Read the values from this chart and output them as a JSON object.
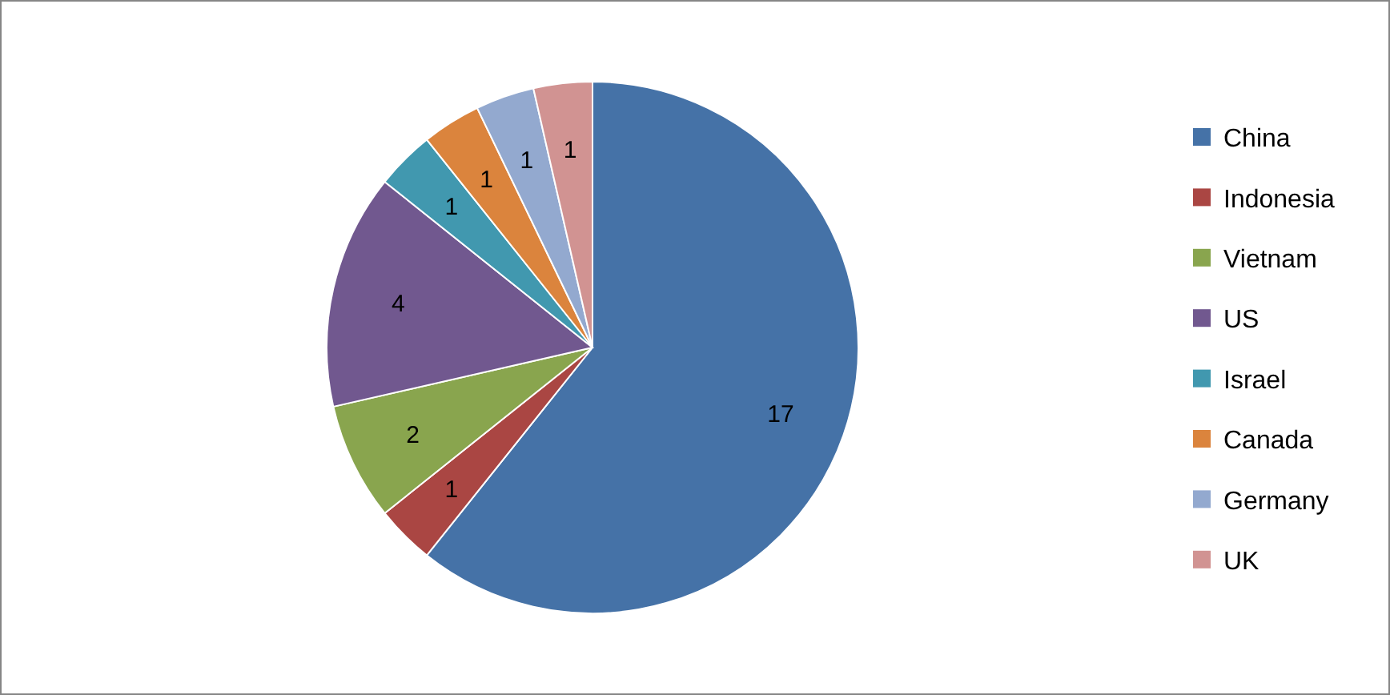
{
  "chart_data": {
    "type": "pie",
    "categories": [
      "China",
      "Indonesia",
      "Vietnam",
      "US",
      "Israel",
      "Canada",
      "Germany",
      "UK"
    ],
    "values": [
      17,
      1,
      2,
      4,
      1,
      1,
      1,
      1
    ],
    "colors": [
      "#4572a7",
      "#aa4643",
      "#89a54e",
      "#71588f",
      "#4198af",
      "#db843d",
      "#93a9cf",
      "#d19392"
    ],
    "data_labels": true,
    "legend": "right"
  }
}
